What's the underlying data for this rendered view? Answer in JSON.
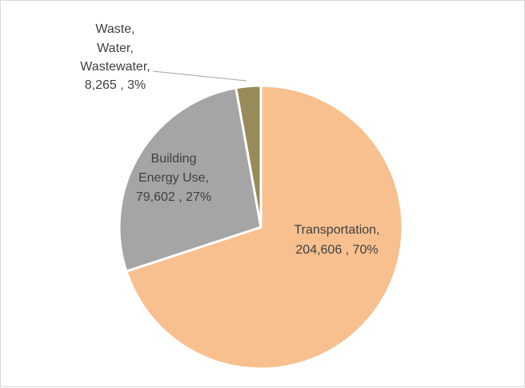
{
  "chart_data": {
    "type": "pie",
    "categories": [
      "Transportation",
      "Building Energy Use",
      "Waste, Water, Wastewater"
    ],
    "values": [
      204606,
      79602,
      8265
    ],
    "percentages": [
      70,
      27,
      3
    ],
    "colors": [
      "#f8c08f",
      "#a5a5a5",
      "#968b59"
    ],
    "leader_line": true,
    "labels": {
      "transportation": {
        "line1": "Transportation,",
        "line2": "204,606 , 70%"
      },
      "building": {
        "line1": "Building",
        "line2": "Energy Use,",
        "line3": "79,602 , 27%"
      },
      "waste": {
        "line1": "Waste,",
        "line2": "Water,",
        "line3": "Wastewater,",
        "line4": "8,265 , 3%"
      }
    }
  }
}
